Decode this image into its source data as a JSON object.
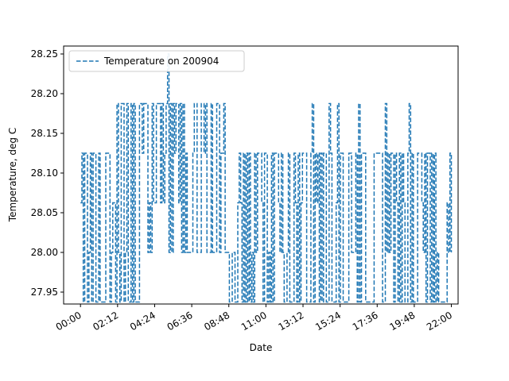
{
  "chart_data": {
    "type": "line",
    "xlabel": "Date",
    "ylabel": "Temperature, deg C",
    "xlim": [
      "00:00",
      "22:24"
    ],
    "ylim": [
      27.935,
      28.26
    ],
    "x_ticks": [
      "00:00",
      "02:12",
      "04:24",
      "06:36",
      "08:48",
      "11:00",
      "13:12",
      "15:24",
      "17:36",
      "19:48",
      "22:00"
    ],
    "y_ticks": [
      "27.95",
      "28.00",
      "28.05",
      "28.10",
      "28.15",
      "28.20",
      "28.25"
    ],
    "legend": {
      "position": "upper-left",
      "entries": [
        "Temperature on 200904"
      ]
    },
    "grid": false,
    "series": [
      {
        "name": "Temperature on 200904",
        "color": "#1f77b4",
        "line_style": "dashed",
        "x_start": "00:00",
        "x_end": "22:00",
        "levels": [
          27.9375,
          28.0,
          28.0625,
          28.125,
          28.1875,
          28.25
        ],
        "peak": {
          "time": "05:10",
          "value": 28.25
        }
      }
    ]
  }
}
